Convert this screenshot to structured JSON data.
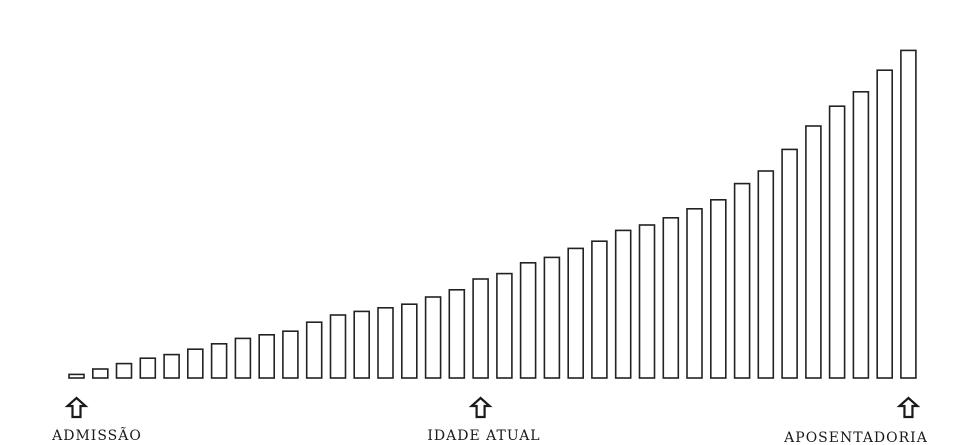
{
  "chart_data": {
    "type": "bar",
    "title": "",
    "xlabel": "",
    "ylabel": "",
    "ylim": [
      0,
      100
    ],
    "grid": false,
    "values": [
      1,
      2.5,
      4,
      5.5,
      6.5,
      8,
      9.5,
      11,
      12,
      13,
      15.5,
      17.5,
      18.5,
      19.5,
      20.5,
      22.5,
      24.5,
      27.5,
      29,
      32,
      33.5,
      36,
      38,
      41,
      42.5,
      44.5,
      47,
      49.5,
      54,
      57.5,
      63.5,
      70,
      75.5,
      79.5,
      85.5,
      91
    ],
    "markers": [
      {
        "label": "ADMISSÃO",
        "index": 0
      },
      {
        "label": "IDADE ATUAL",
        "index": 17
      },
      {
        "label": "APOSENTADORIA",
        "index": 35
      }
    ]
  }
}
